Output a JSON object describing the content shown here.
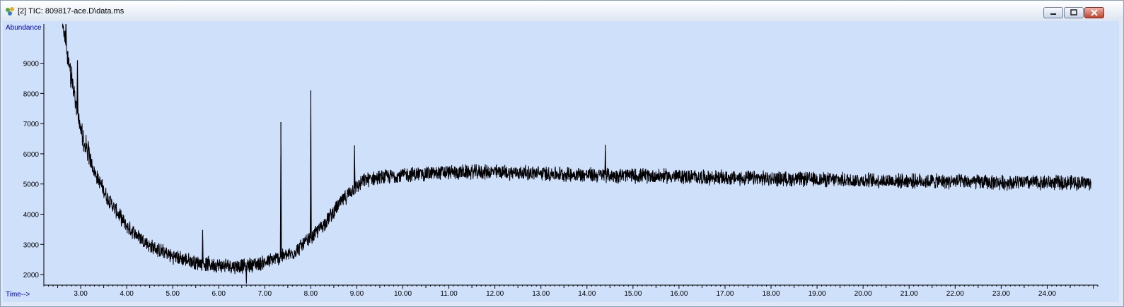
{
  "window": {
    "title": "[2] TIC: 809817-ace.D\\data.ms",
    "buttons": {
      "minimize": "minimize",
      "restore": "restore",
      "close": "close"
    }
  },
  "colors": {
    "plot_background": "#cfe0fb",
    "trace": "#000000",
    "axis_label": "#0000cc"
  },
  "chart_data": {
    "type": "line",
    "title": "",
    "ylabel": "Abundance",
    "xlabel": "Time-->",
    "xlim": [
      2.2,
      25.1
    ],
    "ylim": [
      1650,
      10300
    ],
    "yticks": [
      2000,
      3000,
      4000,
      5000,
      6000,
      7000,
      8000,
      9000
    ],
    "ytick_labels": [
      "2000",
      "3000",
      "4000",
      "5000",
      "6000",
      "7000",
      "8000",
      "9000"
    ],
    "xticks": [
      3,
      4,
      5,
      6,
      7,
      8,
      9,
      10,
      11,
      12,
      13,
      14,
      15,
      16,
      17,
      18,
      19,
      20,
      21,
      22,
      23,
      24
    ],
    "xtick_labels": [
      "3.00",
      "4.00",
      "5.00",
      "6.00",
      "7.00",
      "8.00",
      "9.00",
      "10.00",
      "11.00",
      "12.00",
      "13.00",
      "14.00",
      "15.00",
      "16.00",
      "17.00",
      "18.00",
      "19.00",
      "20.00",
      "21.00",
      "22.00",
      "23.00",
      "24.00"
    ],
    "x_range": [
      2.6,
      24.95
    ],
    "grid": false,
    "series": [
      {
        "baseline": [
          [
            2.6,
            10300
          ],
          [
            2.8,
            8500
          ],
          [
            3.0,
            6700
          ],
          [
            3.3,
            5400
          ],
          [
            3.6,
            4500
          ],
          [
            4.0,
            3600
          ],
          [
            4.5,
            2950
          ],
          [
            5.0,
            2600
          ],
          [
            5.5,
            2400
          ],
          [
            6.0,
            2300
          ],
          [
            6.5,
            2280
          ],
          [
            7.0,
            2400
          ],
          [
            7.3,
            2550
          ],
          [
            7.6,
            2700
          ],
          [
            8.0,
            3200
          ],
          [
            8.3,
            3700
          ],
          [
            8.6,
            4300
          ],
          [
            8.9,
            4800
          ],
          [
            9.2,
            5150
          ],
          [
            10.0,
            5300
          ],
          [
            11.0,
            5380
          ],
          [
            12.0,
            5400
          ],
          [
            13.0,
            5350
          ],
          [
            14.0,
            5300
          ],
          [
            15.0,
            5280
          ],
          [
            16.0,
            5250
          ],
          [
            17.0,
            5200
          ],
          [
            18.0,
            5180
          ],
          [
            19.0,
            5150
          ],
          [
            20.0,
            5120
          ],
          [
            21.0,
            5100
          ],
          [
            22.0,
            5080
          ],
          [
            23.0,
            5050
          ],
          [
            24.0,
            5050
          ],
          [
            24.95,
            5040
          ]
        ],
        "noise_amplitude": 280,
        "peaks": [
          {
            "x": 2.68,
            "y": 10300
          },
          {
            "x": 2.93,
            "y": 9100
          },
          {
            "x": 5.65,
            "y": 3480
          },
          {
            "x": 7.35,
            "y": 7050
          },
          {
            "x": 8.0,
            "y": 8100
          },
          {
            "x": 8.95,
            "y": 6280
          },
          {
            "x": 6.6,
            "y": 1700
          },
          {
            "x": 14.4,
            "y": 6300
          }
        ]
      }
    ]
  }
}
